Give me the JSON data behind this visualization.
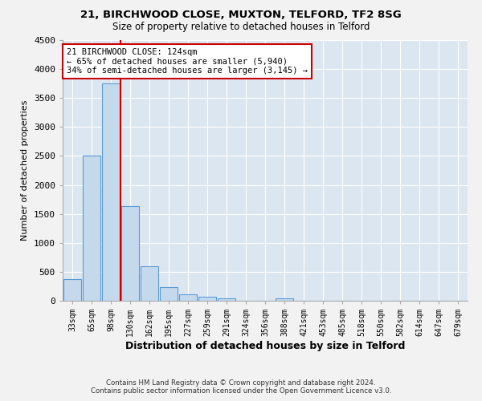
{
  "title1": "21, BIRCHWOOD CLOSE, MUXTON, TELFORD, TF2 8SG",
  "title2": "Size of property relative to detached houses in Telford",
  "xlabel": "Distribution of detached houses by size in Telford",
  "ylabel": "Number of detached properties",
  "categories": [
    "33sqm",
    "65sqm",
    "98sqm",
    "130sqm",
    "162sqm",
    "195sqm",
    "227sqm",
    "259sqm",
    "291sqm",
    "324sqm",
    "356sqm",
    "388sqm",
    "421sqm",
    "453sqm",
    "485sqm",
    "518sqm",
    "550sqm",
    "582sqm",
    "614sqm",
    "647sqm",
    "679sqm"
  ],
  "values": [
    370,
    2500,
    3750,
    1640,
    590,
    230,
    110,
    65,
    35,
    0,
    0,
    40,
    0,
    0,
    0,
    0,
    0,
    0,
    0,
    0,
    0
  ],
  "bar_color": "#c5d9ed",
  "bar_edge_color": "#5b9bd5",
  "vline_color": "#cc0000",
  "annotation_text": "21 BIRCHWOOD CLOSE: 124sqm\n← 65% of detached houses are smaller (5,940)\n34% of semi-detached houses are larger (3,145) →",
  "annotation_box_color": "#ffffff",
  "annotation_box_edge": "#cc0000",
  "ylim": [
    0,
    4500
  ],
  "yticks": [
    0,
    500,
    1000,
    1500,
    2000,
    2500,
    3000,
    3500,
    4000,
    4500
  ],
  "plot_bg": "#dce6f1",
  "fig_bg": "#f2f2f2",
  "grid_color": "#ffffff",
  "footer1": "Contains HM Land Registry data © Crown copyright and database right 2024.",
  "footer2": "Contains public sector information licensed under the Open Government Licence v3.0."
}
